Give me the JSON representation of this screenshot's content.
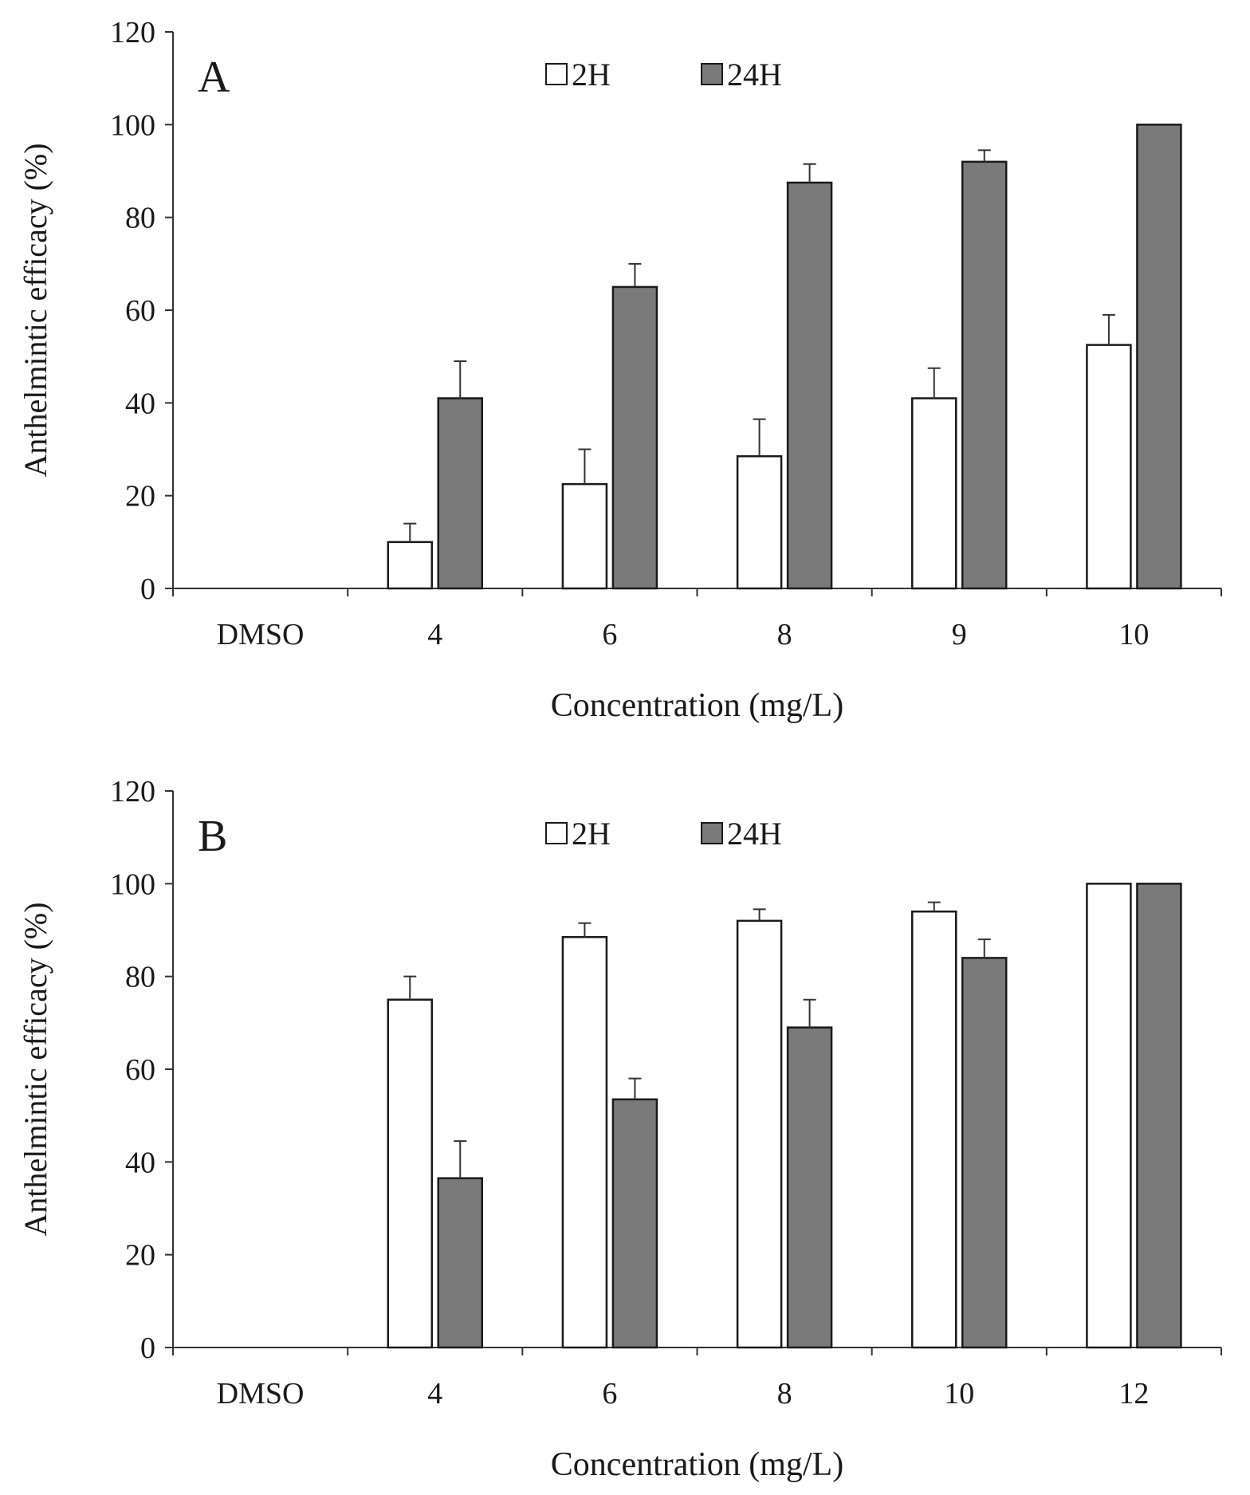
{
  "chart_data": [
    {
      "panel_label": "A",
      "type": "bar",
      "categories": [
        "DMSO",
        "4",
        "6",
        "8",
        "9",
        "10"
      ],
      "series": [
        {
          "name": "2H",
          "color": "#ffffff",
          "values": [
            0,
            10,
            22.5,
            28.5,
            41,
            52.5
          ],
          "errors": [
            0,
            4,
            7.5,
            8,
            6.5,
            6.5
          ]
        },
        {
          "name": "24H",
          "color": "#7a7a7a",
          "values": [
            0,
            41,
            65,
            87.5,
            92,
            100
          ],
          "errors": [
            0,
            8,
            5,
            4,
            2.5,
            0
          ]
        }
      ],
      "xlabel": "Concentration (mg/L)",
      "ylabel": "Anthelmintic efficacy (%)",
      "ylim": [
        0,
        120
      ],
      "yticks": [
        0,
        20,
        40,
        60,
        80,
        100,
        120
      ],
      "legend": "top-center",
      "grid": false
    },
    {
      "panel_label": "B",
      "type": "bar",
      "categories": [
        "DMSO",
        "4",
        "6",
        "8",
        "10",
        "12"
      ],
      "series": [
        {
          "name": "2H",
          "color": "#ffffff",
          "values": [
            0,
            75,
            88.5,
            92,
            94,
            100
          ],
          "errors": [
            0,
            5,
            3,
            2.5,
            2,
            0
          ]
        },
        {
          "name": "24H",
          "color": "#7a7a7a",
          "values": [
            0,
            36.5,
            53.5,
            69,
            84,
            100
          ],
          "errors": [
            0,
            8,
            4.5,
            6,
            4,
            0
          ]
        }
      ],
      "xlabel": "Concentration (mg/L)",
      "ylabel": "Anthelmintic efficacy (%)",
      "ylim": [
        0,
        120
      ],
      "yticks": [
        0,
        20,
        40,
        60,
        80,
        100,
        120
      ],
      "legend": "top-center",
      "grid": false
    }
  ]
}
